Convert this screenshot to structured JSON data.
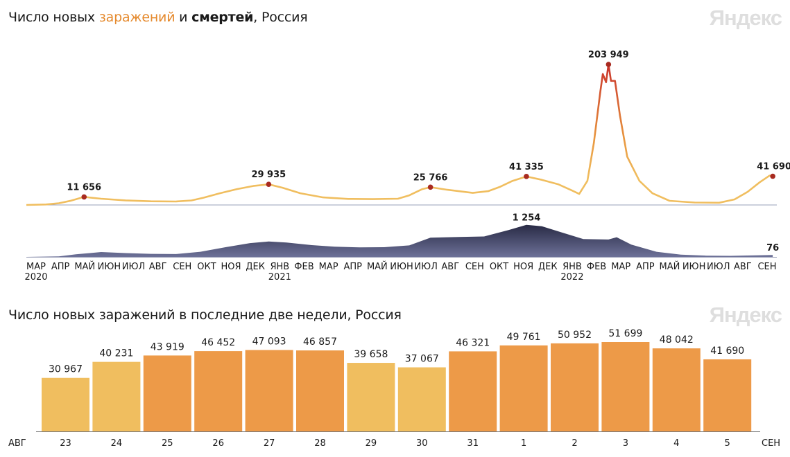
{
  "brand": "Яндекс",
  "chart1": {
    "title_pre": "Число новых ",
    "title_infections": "заражений",
    "title_mid": " и ",
    "title_deaths": "смертей",
    "title_post": ", Россия"
  },
  "chart2": {
    "title": "Число новых заражений в последние две недели, Россия"
  },
  "colors": {
    "infections_line": "#f0be5f",
    "infections_peak": "#c9322a",
    "deaths_area": "#3c3f63",
    "bar_weekday": "#ed9a48",
    "bar_weekend": "#f0be5f",
    "weekend_tick": "#e0451e",
    "marker": "#a82a20"
  },
  "chart_data": [
    {
      "type": "line",
      "series": [
        {
          "name": "заражений",
          "points": [
            [
              "2020-03-01",
              0
            ],
            [
              "2020-03-25",
              700
            ],
            [
              "2020-04-10",
              2500
            ],
            [
              "2020-04-25",
              6200
            ],
            [
              "2020-05-11",
              11656
            ],
            [
              "2020-06-01",
              9000
            ],
            [
              "2020-07-01",
              6600
            ],
            [
              "2020-08-01",
              5300
            ],
            [
              "2020-09-01",
              5000
            ],
            [
              "2020-09-20",
              6500
            ],
            [
              "2020-10-05",
              10500
            ],
            [
              "2020-10-25",
              17000
            ],
            [
              "2020-11-15",
              23000
            ],
            [
              "2020-12-05",
              27500
            ],
            [
              "2020-12-24",
              29935
            ],
            [
              "2021-01-10",
              25000
            ],
            [
              "2021-02-01",
              17000
            ],
            [
              "2021-03-01",
              11000
            ],
            [
              "2021-04-01",
              8700
            ],
            [
              "2021-05-01",
              8400
            ],
            [
              "2021-06-01",
              9000
            ],
            [
              "2021-06-15",
              14000
            ],
            [
              "2021-07-01",
              23000
            ],
            [
              "2021-07-11",
              25766
            ],
            [
              "2021-08-01",
              22000
            ],
            [
              "2021-09-01",
              17500
            ],
            [
              "2021-09-20",
              20000
            ],
            [
              "2021-10-05",
              26500
            ],
            [
              "2021-10-20",
              35000
            ],
            [
              "2021-11-06",
              41335
            ],
            [
              "2021-11-25",
              36500
            ],
            [
              "2021-12-15",
              30000
            ],
            [
              "2022-01-01",
              21000
            ],
            [
              "2022-01-10",
              16000
            ],
            [
              "2022-01-20",
              35000
            ],
            [
              "2022-01-28",
              90000
            ],
            [
              "2022-02-05",
              165000
            ],
            [
              "2022-02-08",
              190000
            ],
            [
              "2022-02-12",
              178000
            ],
            [
              "2022-02-15",
              203949
            ],
            [
              "2022-02-18",
              180000
            ],
            [
              "2022-02-23",
              180000
            ],
            [
              "2022-03-01",
              130000
            ],
            [
              "2022-03-10",
              70000
            ],
            [
              "2022-03-25",
              35000
            ],
            [
              "2022-04-10",
              17000
            ],
            [
              "2022-05-01",
              6000
            ],
            [
              "2022-06-01",
              3500
            ],
            [
              "2022-07-01",
              3200
            ],
            [
              "2022-07-20",
              8000
            ],
            [
              "2022-08-05",
              19000
            ],
            [
              "2022-08-20",
              33000
            ],
            [
              "2022-09-01",
              42500
            ],
            [
              "2022-09-05",
              41690
            ]
          ]
        },
        {
          "name": "смертей",
          "points": [
            [
              "2020-03-01",
              0
            ],
            [
              "2020-04-10",
              20
            ],
            [
              "2020-05-01",
              100
            ],
            [
              "2020-06-01",
              190
            ],
            [
              "2020-07-01",
              150
            ],
            [
              "2020-08-01",
              120
            ],
            [
              "2020-09-01",
              110
            ],
            [
              "2020-10-01",
              200
            ],
            [
              "2020-11-01",
              380
            ],
            [
              "2020-12-01",
              540
            ],
            [
              "2020-12-24",
              600
            ],
            [
              "2021-01-15",
              560
            ],
            [
              "2021-02-15",
              460
            ],
            [
              "2021-03-15",
              400
            ],
            [
              "2021-04-15",
              370
            ],
            [
              "2021-05-15",
              380
            ],
            [
              "2021-06-15",
              450
            ],
            [
              "2021-07-11",
              750
            ],
            [
              "2021-08-15",
              780
            ],
            [
              "2021-09-15",
              800
            ],
            [
              "2021-10-15",
              1050
            ],
            [
              "2021-11-06",
              1254
            ],
            [
              "2021-11-25",
              1200
            ],
            [
              "2021-12-20",
              950
            ],
            [
              "2022-01-15",
              700
            ],
            [
              "2022-02-15",
              680
            ],
            [
              "2022-02-25",
              770
            ],
            [
              "2022-03-15",
              480
            ],
            [
              "2022-04-15",
              200
            ],
            [
              "2022-05-15",
              90
            ],
            [
              "2022-06-15",
              50
            ],
            [
              "2022-07-15",
              40
            ],
            [
              "2022-08-15",
              60
            ],
            [
              "2022-09-05",
              76
            ]
          ]
        }
      ],
      "labels": [
        {
          "text": "11 656",
          "date": "2020-05-11",
          "value": 11656,
          "series": "заражений"
        },
        {
          "text": "29 935",
          "date": "2020-12-24",
          "value": 29935,
          "series": "заражений"
        },
        {
          "text": "25 766",
          "date": "2021-07-11",
          "value": 25766,
          "series": "заражений"
        },
        {
          "text": "41 335",
          "date": "2021-11-06",
          "value": 41335,
          "series": "заражений"
        },
        {
          "text": "203 949",
          "date": "2022-02-15",
          "value": 203949,
          "series": "заражений"
        },
        {
          "text": "41 690",
          "date": "2022-09-05",
          "value": 41690,
          "series": "заражений"
        },
        {
          "text": "1 254",
          "date": "2021-11-06",
          "value": 1254,
          "series": "смертей"
        },
        {
          "text": "76",
          "date": "2022-09-05",
          "value": 76,
          "series": "смертей"
        }
      ],
      "x_ticks": [
        {
          "label": "МАР",
          "year": "2020"
        },
        {
          "label": "АПР"
        },
        {
          "label": "МАЙ"
        },
        {
          "label": "ИЮН"
        },
        {
          "label": "ИЮЛ"
        },
        {
          "label": "АВГ"
        },
        {
          "label": "СЕН"
        },
        {
          "label": "ОКТ"
        },
        {
          "label": "НОЯ"
        },
        {
          "label": "ДЕК"
        },
        {
          "label": "ЯНВ",
          "year": "2021"
        },
        {
          "label": "ФЕВ"
        },
        {
          "label": "МАР"
        },
        {
          "label": "АПР"
        },
        {
          "label": "МАЙ"
        },
        {
          "label": "ИЮН"
        },
        {
          "label": "ИЮЛ"
        },
        {
          "label": "АВГ"
        },
        {
          "label": "СЕН"
        },
        {
          "label": "ОКТ"
        },
        {
          "label": "НОЯ"
        },
        {
          "label": "ДЕК"
        },
        {
          "label": "ЯНВ",
          "year": "2022"
        },
        {
          "label": "ФЕВ"
        },
        {
          "label": "МАР"
        },
        {
          "label": "АПР"
        },
        {
          "label": "МАЙ"
        },
        {
          "label": "ИЮН"
        },
        {
          "label": "ИЮЛ"
        },
        {
          "label": "АВГ"
        },
        {
          "label": "СЕН"
        }
      ],
      "x_range": [
        "2020-03-01",
        "2022-09-10"
      ],
      "ylim_infections": [
        0,
        215000
      ],
      "ylim_deaths": [
        0,
        1300
      ],
      "grid": false
    },
    {
      "type": "bar",
      "categories": [
        "23",
        "24",
        "25",
        "26",
        "27",
        "28",
        "29",
        "30",
        "31",
        "1",
        "2",
        "3",
        "4",
        "5"
      ],
      "values": [
        30967,
        40231,
        43919,
        46452,
        47093,
        46857,
        39658,
        37067,
        46321,
        49761,
        50952,
        51699,
        48042,
        41690
      ],
      "value_labels": [
        "30 967",
        "40 231",
        "43 919",
        "46 452",
        "47 093",
        "46 857",
        "39 658",
        "37 067",
        "46 321",
        "49 761",
        "50 952",
        "51 699",
        "48 042",
        "41 690"
      ],
      "bar_style": [
        "light",
        "light",
        "dark",
        "dark",
        "dark",
        "dark",
        "light",
        "light",
        "dark",
        "dark",
        "dark",
        "dark",
        "dark",
        "dark"
      ],
      "weekend": [
        false,
        false,
        false,
        false,
        true,
        true,
        false,
        false,
        false,
        false,
        false,
        true,
        true,
        false
      ],
      "month_left": "АВГ",
      "month_right": "СЕН",
      "ylim": [
        0,
        60000
      ],
      "grid": false
    }
  ]
}
